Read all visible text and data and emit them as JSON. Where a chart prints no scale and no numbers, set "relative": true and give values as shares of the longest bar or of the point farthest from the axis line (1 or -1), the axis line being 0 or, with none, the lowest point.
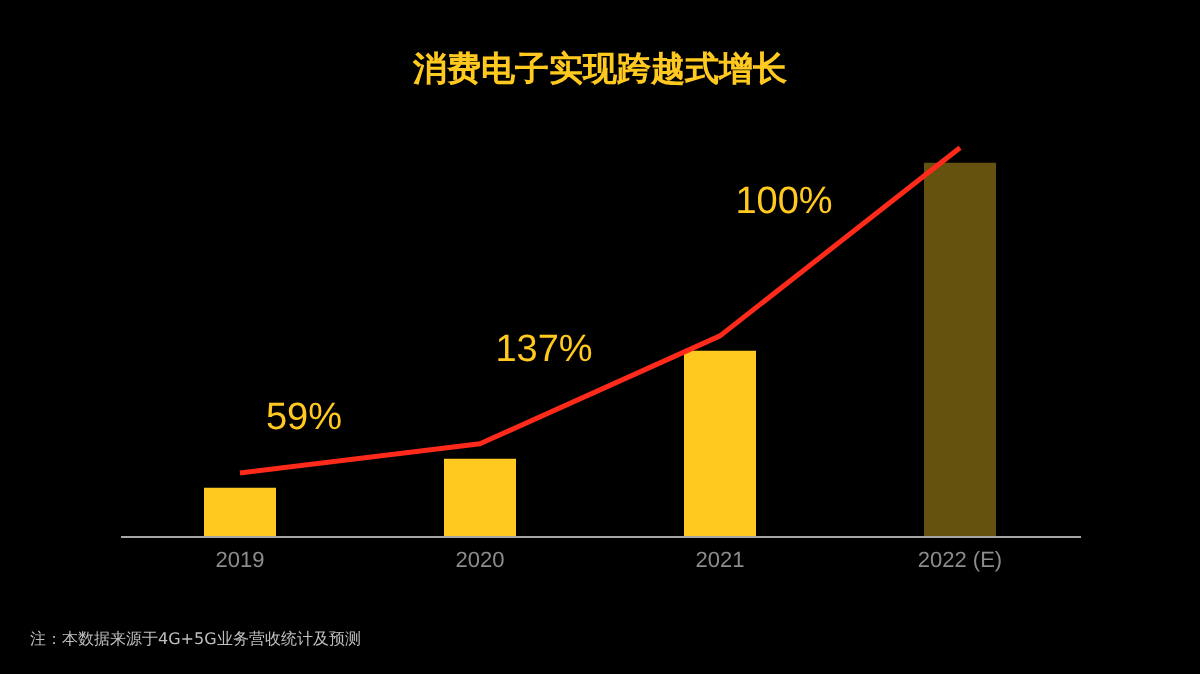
{
  "chart_data": {
    "type": "bar",
    "title": "消费电子实现跨越式增长",
    "categories": [
      "2019",
      "2020",
      "2021",
      "2022 (E)"
    ],
    "values": [
      0.129,
      0.207,
      0.496,
      1
    ],
    "colors": [
      "#ffc91f",
      "#ffc91f",
      "#ffc91f",
      "#66520f"
    ],
    "relative": true,
    "annotations": [
      "59%",
      "137%",
      "100%",
      "注：本数据来源于4G+5G业务营收统计及预测"
    ],
    "grid": false,
    "legend": false
  }
}
